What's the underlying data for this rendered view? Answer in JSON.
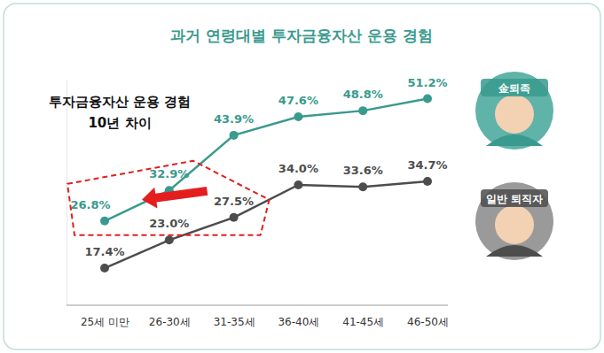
{
  "chart_data": {
    "type": "line",
    "title": "과거 연령대별 투자금융자산 운용 경험",
    "annotations": [
      "투자금융자산 운용 경험",
      "10년 차이"
    ],
    "categories": [
      "25세 미만",
      "26-30세",
      "31-35세",
      "36-40세",
      "41-45세",
      "46-50세"
    ],
    "series": [
      {
        "name": "金퇴족",
        "color": "#3a9a8e",
        "marker": "circle",
        "line_style": "solid",
        "values": [
          26.8,
          32.9,
          43.9,
          47.6,
          48.8,
          51.2
        ],
        "value_labels": [
          "26.8%",
          "32.9%",
          "43.9%",
          "47.6%",
          "48.8%",
          "51.2%"
        ]
      },
      {
        "name": "일반 퇴직자",
        "color": "#4d4d4d",
        "marker": "circle",
        "line_style": "solid",
        "values": [
          17.4,
          23.0,
          27.5,
          34.0,
          33.6,
          34.7
        ],
        "value_labels": [
          "17.4%",
          "23.0%",
          "27.5%",
          "34.0%",
          "33.6%",
          "34.7%"
        ]
      }
    ],
    "ylim": [
      10,
      55
    ],
    "grid": false,
    "data_labels": true,
    "tick_labels": "x"
  }
}
